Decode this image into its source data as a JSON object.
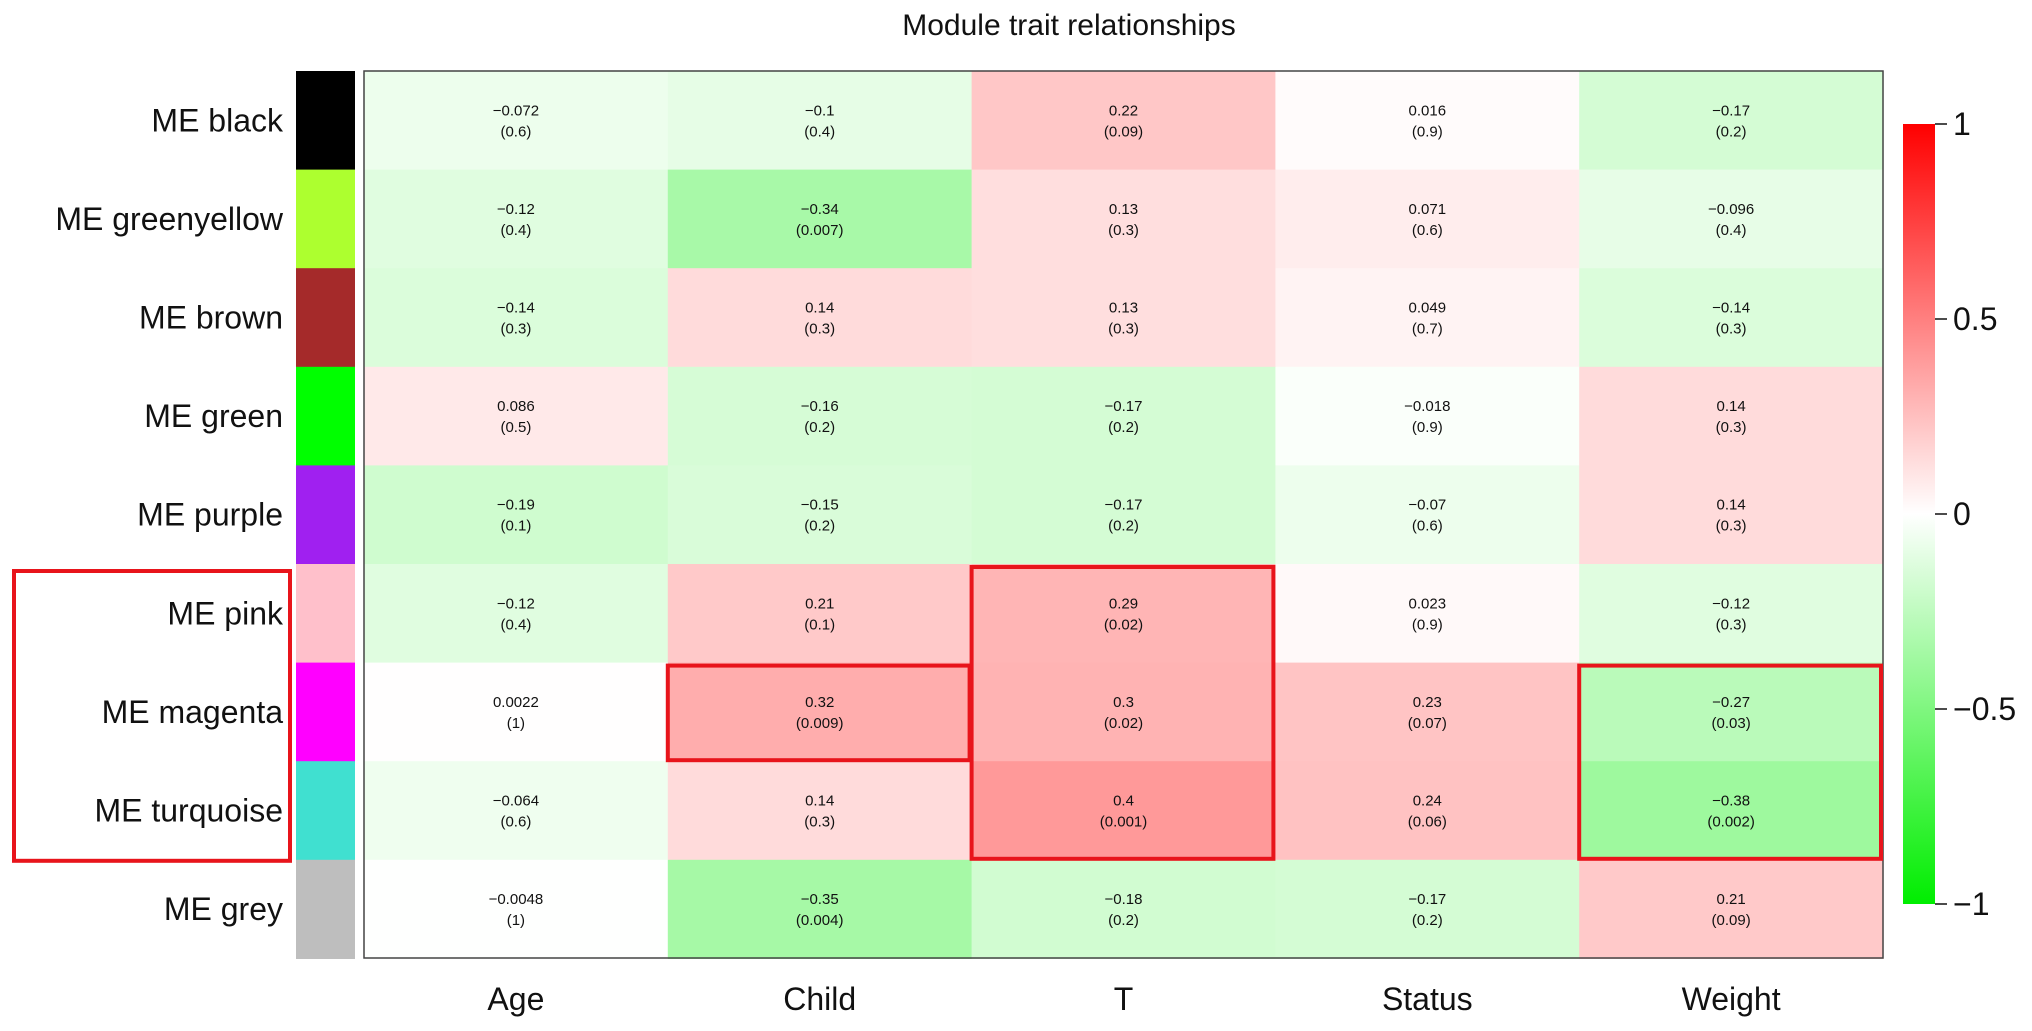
{
  "chart_data": {
    "type": "heatmap",
    "title": "Module trait relationships",
    "x_categories": [
      "Age",
      "Child",
      "T",
      "Status",
      "Weight"
    ],
    "y_categories": [
      "ME black",
      "ME greenyellow",
      "ME brown",
      "ME green",
      "ME purple",
      "ME pink",
      "ME magenta",
      "ME turquoise",
      "ME grey"
    ],
    "module_colors": [
      "#000000",
      "#adff2f",
      "#a52a2a",
      "#00ff00",
      "#a020f0",
      "#ffc0cb",
      "#ff00ff",
      "#40e0d0",
      "#bebebe"
    ],
    "correlations": [
      [
        -0.072,
        -0.1,
        0.22,
        0.016,
        -0.17
      ],
      [
        -0.12,
        -0.34,
        0.13,
        0.071,
        -0.096
      ],
      [
        -0.14,
        0.14,
        0.13,
        0.049,
        -0.14
      ],
      [
        0.086,
        -0.16,
        -0.17,
        -0.018,
        0.14
      ],
      [
        -0.19,
        -0.15,
        -0.17,
        -0.07,
        0.14
      ],
      [
        -0.12,
        0.21,
        0.29,
        0.023,
        -0.12
      ],
      [
        0.0022,
        0.32,
        0.3,
        0.23,
        -0.27
      ],
      [
        -0.064,
        0.14,
        0.4,
        0.24,
        -0.38
      ],
      [
        -0.0048,
        -0.35,
        -0.18,
        -0.17,
        0.21
      ]
    ],
    "cell_value_labels": [
      [
        "−0.072",
        "−0.1",
        "0.22",
        "0.016",
        "−0.17"
      ],
      [
        "−0.12",
        "−0.34",
        "0.13",
        "0.071",
        "−0.096"
      ],
      [
        "−0.14",
        "0.14",
        "0.13",
        "0.049",
        "−0.14"
      ],
      [
        "0.086",
        "−0.16",
        "−0.17",
        "−0.018",
        "0.14"
      ],
      [
        "−0.19",
        "−0.15",
        "−0.17",
        "−0.07",
        "0.14"
      ],
      [
        "−0.12",
        "0.21",
        "0.29",
        "0.023",
        "−0.12"
      ],
      [
        "0.0022",
        "0.32",
        "0.3",
        "0.23",
        "−0.27"
      ],
      [
        "−0.064",
        "0.14",
        "0.4",
        "0.24",
        "−0.38"
      ],
      [
        "−0.0048",
        "−0.35",
        "−0.18",
        "−0.17",
        "0.21"
      ]
    ],
    "p_value_labels": [
      [
        "(0.6)",
        "(0.4)",
        "(0.09)",
        "(0.9)",
        "(0.2)"
      ],
      [
        "(0.4)",
        "(0.007)",
        "(0.3)",
        "(0.6)",
        "(0.4)"
      ],
      [
        "(0.3)",
        "(0.3)",
        "(0.3)",
        "(0.7)",
        "(0.3)"
      ],
      [
        "(0.5)",
        "(0.2)",
        "(0.2)",
        "(0.9)",
        "(0.3)"
      ],
      [
        "(0.1)",
        "(0.2)",
        "(0.2)",
        "(0.6)",
        "(0.3)"
      ],
      [
        "(0.4)",
        "(0.1)",
        "(0.02)",
        "(0.9)",
        "(0.3)"
      ],
      [
        "(1)",
        "(0.009)",
        "(0.02)",
        "(0.07)",
        "(0.03)"
      ],
      [
        "(0.6)",
        "(0.3)",
        "(0.001)",
        "(0.06)",
        "(0.002)"
      ],
      [
        "(1)",
        "(0.004)",
        "(0.2)",
        "(0.2)",
        "(0.09)"
      ]
    ],
    "color_scale": {
      "range": [
        -1,
        1
      ],
      "low_color": "#00ee00",
      "mid_color": "#ffffff",
      "high_color": "#ff0000",
      "tick_values": [
        1,
        0.5,
        0,
        -0.5,
        -1
      ],
      "tick_labels": [
        "1",
        "0.5",
        "0",
        "−0.5",
        "−1"
      ]
    },
    "highlight_color": "#e8141b",
    "highlights": [
      {
        "kind": "row_group",
        "rows": [
          "ME pink",
          "ME magenta",
          "ME turquoise"
        ]
      },
      {
        "kind": "cells",
        "rows": [
          "ME magenta"
        ],
        "columns": [
          "Child"
        ]
      },
      {
        "kind": "cells",
        "rows": [
          "ME pink",
          "ME magenta",
          "ME turquoise"
        ],
        "columns": [
          "T"
        ]
      },
      {
        "kind": "cells",
        "rows": [
          "ME magenta",
          "ME turquoise"
        ],
        "columns": [
          "Weight"
        ]
      }
    ]
  }
}
